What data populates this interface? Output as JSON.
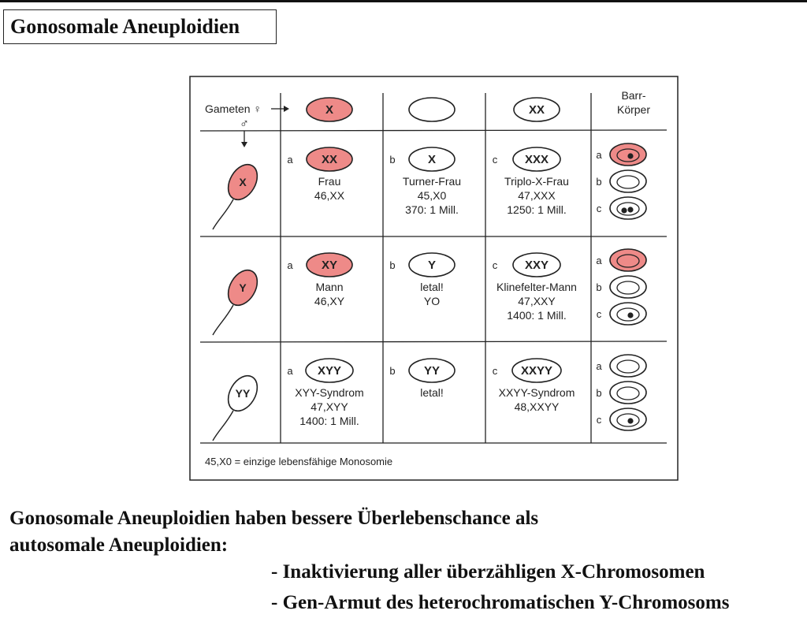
{
  "title": "Gonosomale Aneuploidien",
  "header": {
    "gameten": "Gameten ♀",
    "male_symbol": "♂",
    "female_gametes": [
      {
        "label": "X",
        "filled": true
      },
      {
        "label": "",
        "filled": false
      },
      {
        "label": "XX",
        "filled": false
      }
    ],
    "barr_line1": "Barr-",
    "barr_line2": "Körper"
  },
  "rows": [
    {
      "sperm": {
        "label": "X",
        "filled": true
      },
      "cells": [
        {
          "letter": "a",
          "karyo": "XX",
          "filled": true,
          "lines": [
            "Frau",
            "46,XX"
          ]
        },
        {
          "letter": "b",
          "karyo": "X",
          "filled": false,
          "lines": [
            "Turner-Frau",
            "45,X0",
            "370: 1 Mill."
          ]
        },
        {
          "letter": "c",
          "karyo": "XXX",
          "filled": false,
          "lines": [
            "Triplo-X-Frau",
            "47,XXX",
            "1250: 1 Mill."
          ]
        }
      ],
      "barr": [
        {
          "letter": "a",
          "filled": true,
          "dots": 1
        },
        {
          "letter": "b",
          "filled": false,
          "dots": 0
        },
        {
          "letter": "c",
          "filled": false,
          "dots": 2
        }
      ]
    },
    {
      "sperm": {
        "label": "Y",
        "filled": true
      },
      "cells": [
        {
          "letter": "a",
          "karyo": "XY",
          "filled": true,
          "lines": [
            "Mann",
            "46,XY"
          ]
        },
        {
          "letter": "b",
          "karyo": "Y",
          "filled": false,
          "lines": [
            "letal!",
            "YO"
          ]
        },
        {
          "letter": "c",
          "karyo": "XXY",
          "filled": false,
          "lines": [
            "Klinefelter-Mann",
            "47,XXY",
            "1400: 1 Mill."
          ]
        }
      ],
      "barr": [
        {
          "letter": "a",
          "filled": true,
          "dots": 0
        },
        {
          "letter": "b",
          "filled": false,
          "dots": 0
        },
        {
          "letter": "c",
          "filled": false,
          "dots": 1
        }
      ]
    },
    {
      "sperm": {
        "label": "YY",
        "filled": false
      },
      "cells": [
        {
          "letter": "a",
          "karyo": "XYY",
          "filled": false,
          "lines": [
            "XYY-Syndrom",
            "47,XYY",
            "1400: 1 Mill."
          ]
        },
        {
          "letter": "b",
          "karyo": "YY",
          "filled": false,
          "lines": [
            "letal!"
          ]
        },
        {
          "letter": "c",
          "karyo": "XXYY",
          "filled": false,
          "lines": [
            "XXYY-Syndrom",
            "48,XXYY"
          ]
        }
      ],
      "barr": [
        {
          "letter": "a",
          "filled": false,
          "dots": 0
        },
        {
          "letter": "b",
          "filled": false,
          "dots": 0
        },
        {
          "letter": "c",
          "filled": false,
          "dots": 1
        }
      ]
    }
  ],
  "footnote": "45,X0 = einzige lebensfähige Monosomie",
  "text": {
    "line1": "Gonosomale Aneuploidien haben bessere Überlebenschance als",
    "line2": "autosomale Aneuploidien:",
    "bullet1": "- Inaktivierung aller überzähligen X-Chromosomen",
    "bullet2": "- Gen-Armut des heterochromatischen Y-Chromosoms"
  },
  "colors": {
    "pink": "#ee8a88",
    "ink": "#222222"
  }
}
